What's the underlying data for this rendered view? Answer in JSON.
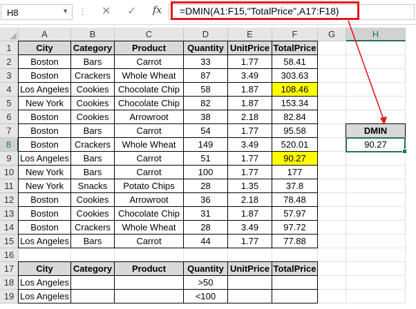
{
  "formula_bar": {
    "name_box": "H8",
    "cancel_icon": "✕",
    "enter_icon": "✓",
    "fx_label": "fx",
    "formula": "=DMIN(A1:F15,\"TotalPrice\",A17:F18)"
  },
  "columns": [
    "A",
    "B",
    "C",
    "D",
    "E",
    "F",
    "G",
    "H"
  ],
  "rows": [
    1,
    2,
    3,
    4,
    5,
    6,
    7,
    8,
    9,
    10,
    11,
    12,
    13,
    14,
    15,
    16,
    17,
    18,
    19
  ],
  "table": {
    "headers": [
      "City",
      "Category",
      "Product",
      "Quantity",
      "UnitPrice",
      "TotalPrice"
    ],
    "rows": [
      [
        "Boston",
        "Bars",
        "Carrot",
        "33",
        "1.77",
        "58.41"
      ],
      [
        "Boston",
        "Crackers",
        "Whole Wheat",
        "87",
        "3.49",
        "303.63"
      ],
      [
        "Los Angeles",
        "Cookies",
        "Chocolate Chip",
        "58",
        "1.87",
        "108.46"
      ],
      [
        "New York",
        "Cookies",
        "Chocolate Chip",
        "82",
        "1.87",
        "153.34"
      ],
      [
        "Boston",
        "Cookies",
        "Arrowroot",
        "38",
        "2.18",
        "82.84"
      ],
      [
        "Boston",
        "Bars",
        "Carrot",
        "54",
        "1.77",
        "95.58"
      ],
      [
        "Boston",
        "Crackers",
        "Whole Wheat",
        "149",
        "3.49",
        "520.01"
      ],
      [
        "Los Angeles",
        "Bars",
        "Carrot",
        "51",
        "1.77",
        "90.27"
      ],
      [
        "New York",
        "Bars",
        "Carrot",
        "100",
        "1.77",
        "177"
      ],
      [
        "New York",
        "Snacks",
        "Potato Chips",
        "28",
        "1.35",
        "37.8"
      ],
      [
        "Boston",
        "Cookies",
        "Arrowroot",
        "36",
        "2.18",
        "78.48"
      ],
      [
        "Boston",
        "Cookies",
        "Chocolate Chip",
        "31",
        "1.87",
        "57.97"
      ],
      [
        "Boston",
        "Crackers",
        "Whole Wheat",
        "28",
        "3.49",
        "97.72"
      ],
      [
        "Los Angeles",
        "Bars",
        "Carrot",
        "44",
        "1.77",
        "77.88"
      ]
    ],
    "highlighted_rows": [
      2,
      7
    ],
    "highlight_color": "#ffff00"
  },
  "criteria": {
    "headers": [
      "City",
      "Category",
      "Product",
      "Quantity",
      "UnitPrice",
      "TotalPrice"
    ],
    "rows": [
      [
        "Los Angeles",
        "",
        "",
        ">50",
        "",
        ""
      ],
      [
        "Los Angeles",
        "",
        "",
        "<100",
        "",
        ""
      ]
    ]
  },
  "result": {
    "label": "DMIN",
    "value": "90.27"
  },
  "selected_cell": "H8",
  "colors": {
    "header_fill": "#d9d9d9",
    "selection": "#217346",
    "annotation": "#e3171b"
  }
}
